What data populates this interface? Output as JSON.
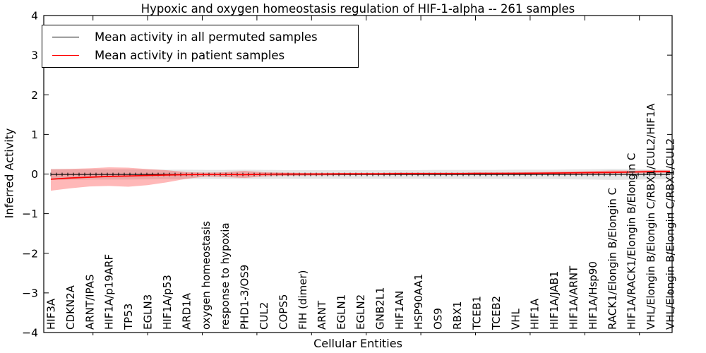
{
  "chart_data": {
    "type": "line",
    "title": "Hypoxic and oxygen homeostasis regulation of HIF-1-alpha -- 261 samples",
    "xlabel": "Cellular Entities",
    "ylabel": "Inferred Activity",
    "ylim": [
      -4,
      4
    ],
    "yticks": [
      4,
      3,
      2,
      1,
      0,
      -1,
      -2,
      -3,
      -4
    ],
    "grid": false,
    "legend_position": "upper left",
    "categories": [
      "HIF3A",
      "CDKN2A",
      "ARNT/IPAS",
      "HIF1A/p19ARF",
      "TP53",
      "EGLN3",
      "HIF1A/p53",
      "ARD1A",
      "oxygen homeostasis",
      "response to hypoxia",
      "PHD1-3/OS9",
      "CUL2",
      "COPS5",
      "FIH (dimer)",
      "ARNT",
      "EGLN1",
      "EGLN2",
      "GNB2L1",
      "HIF1AN",
      "HSP90AA1",
      "OS9",
      "RBX1",
      "TCEB1",
      "TCEB2",
      "VHL",
      "HIF1A",
      "HIF1A/JAB1",
      "HIF1A/ARNT",
      "HIF1A/Hsp90",
      "RACK1/Elongin B/Elongin C",
      "HIF1A/RACK1/Elongin B/Elongin C",
      "VHL/Elongin B/Elongin C/RBX1/CUL2/HIF1A",
      "VHL/Elongin B/Elongin C/RBX1/CUL2"
    ],
    "series": [
      {
        "name": "Mean activity in all permuted samples",
        "color": "#000000",
        "values": [
          -0.01,
          -0.01,
          -0.01,
          -0.01,
          -0.01,
          -0.01,
          -0.01,
          -0.01,
          -0.01,
          -0.01,
          -0.01,
          -0.01,
          -0.01,
          -0.01,
          -0.01,
          -0.01,
          -0.01,
          -0.01,
          -0.01,
          -0.01,
          -0.01,
          -0.01,
          -0.01,
          -0.01,
          -0.01,
          -0.01,
          -0.01,
          -0.01,
          -0.01,
          -0.01,
          -0.01,
          -0.01,
          -0.01
        ]
      },
      {
        "name": "Mean activity in patient samples",
        "color": "#ff0000",
        "values": [
          -0.13,
          -0.1,
          -0.08,
          -0.06,
          -0.05,
          -0.035,
          -0.025,
          -0.015,
          -0.01,
          -0.01,
          -0.015,
          -0.005,
          0.0,
          0.0,
          0.0,
          0.005,
          0.005,
          0.005,
          0.01,
          0.01,
          0.01,
          0.01,
          0.015,
          0.015,
          0.015,
          0.02,
          0.025,
          0.03,
          0.035,
          0.04,
          0.05,
          0.06,
          0.065
        ]
      }
    ],
    "bands": [
      {
        "name": "permuted-samples-range",
        "color": "rgba(0,0,0,0.10)",
        "upper": [
          0.13,
          0.125,
          0.12,
          0.12,
          0.12,
          0.115,
          0.11,
          0.11,
          0.105,
          0.105,
          0.11,
          0.105,
          0.1,
          0.1,
          0.1,
          0.1,
          0.1,
          0.1,
          0.1,
          0.1,
          0.105,
          0.105,
          0.105,
          0.105,
          0.11,
          0.11,
          0.11,
          0.115,
          0.12,
          0.13,
          0.125,
          0.115,
          0.11
        ],
        "lower": [
          -0.15,
          -0.145,
          -0.14,
          -0.14,
          -0.14,
          -0.135,
          -0.13,
          -0.13,
          -0.125,
          -0.125,
          -0.13,
          -0.125,
          -0.12,
          -0.12,
          -0.12,
          -0.12,
          -0.12,
          -0.12,
          -0.12,
          -0.12,
          -0.125,
          -0.125,
          -0.125,
          -0.125,
          -0.13,
          -0.13,
          -0.13,
          -0.135,
          -0.14,
          -0.15,
          -0.145,
          -0.135,
          -0.13
        ]
      },
      {
        "name": "patient-samples-range",
        "color": "rgba(255,0,0,0.28)",
        "upper": [
          0.12,
          0.13,
          0.145,
          0.17,
          0.16,
          0.125,
          0.095,
          0.05,
          0.035,
          0.045,
          0.08,
          0.045,
          0.035,
          0.03,
          0.03,
          0.03,
          0.03,
          0.03,
          0.035,
          0.035,
          0.035,
          0.035,
          0.04,
          0.04,
          0.045,
          0.05,
          0.055,
          0.065,
          0.075,
          0.09,
          0.085,
          0.095,
          0.1
        ],
        "lower": [
          -0.42,
          -0.36,
          -0.315,
          -0.3,
          -0.32,
          -0.28,
          -0.21,
          -0.12,
          -0.065,
          -0.075,
          -0.1,
          -0.06,
          -0.045,
          -0.04,
          -0.035,
          -0.03,
          -0.025,
          -0.025,
          -0.02,
          -0.02,
          -0.02,
          -0.02,
          -0.015,
          -0.015,
          -0.01,
          -0.005,
          0.0,
          0.0,
          0.005,
          0.01,
          0.015,
          0.02,
          0.03
        ]
      }
    ]
  }
}
